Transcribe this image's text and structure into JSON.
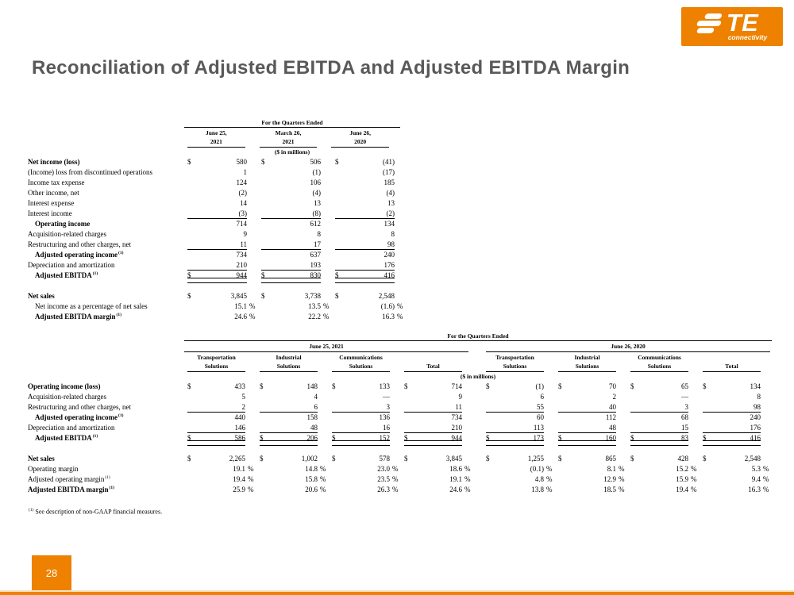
{
  "slide": {
    "title": "Reconciliation of Adjusted EBITDA and Adjusted EBITDA Margin",
    "title_color": "#595959",
    "accent_color": "#EE8100",
    "page_number": "28",
    "footnote": {
      "sup": "(1)",
      "text": "See description of non-GAAP financial measures."
    }
  },
  "logo": {
    "brand": "TE",
    "tagline": "connectivity"
  },
  "quarters_table": {
    "header": "For the Quarters Ended",
    "units": "($ in millions)",
    "columns": [
      {
        "line1": "June 25,",
        "line2": "2021"
      },
      {
        "line1": "March 26,",
        "line2": "2021"
      },
      {
        "line1": "June 26,",
        "line2": "2020"
      }
    ],
    "rows": [
      {
        "label": "Net income (loss)",
        "bold": true,
        "dollar": true,
        "values": [
          "580",
          "506",
          "(41)"
        ]
      },
      {
        "label": "(Income) loss from discontinued operations",
        "values": [
          "1",
          "(1)",
          "(17)"
        ]
      },
      {
        "label": "Income tax expense",
        "values": [
          "124",
          "106",
          "185"
        ]
      },
      {
        "label": "Other income, net",
        "values": [
          "(2)",
          "(4)",
          "(4)"
        ]
      },
      {
        "label": "Interest expense",
        "values": [
          "14",
          "13",
          "13"
        ]
      },
      {
        "label": "Interest income",
        "values": [
          "(3)",
          "(8)",
          "(2)"
        ],
        "line": "single"
      },
      {
        "label": "Operating income",
        "bold": true,
        "indent": true,
        "values": [
          "714",
          "612",
          "134"
        ]
      },
      {
        "label": "Acquisition-related charges",
        "values": [
          "9",
          "8",
          "8"
        ]
      },
      {
        "label": "Restructuring and other charges, net",
        "values": [
          "11",
          "17",
          "98"
        ],
        "line": "single"
      },
      {
        "label": "Adjusted operating income",
        "sup": "(1)",
        "bold": true,
        "indent": true,
        "values": [
          "734",
          "637",
          "240"
        ]
      },
      {
        "label": "Depreciation and amortization",
        "values": [
          "210",
          "193",
          "176"
        ],
        "line": "single"
      },
      {
        "label": "Adjusted EBITDA",
        "sup": "(1)",
        "bold": true,
        "indent": true,
        "dollar": true,
        "values": [
          "944",
          "830",
          "416"
        ],
        "line": "double"
      },
      {
        "spacer": true
      },
      {
        "label": "Net sales",
        "bold": true,
        "dollar": true,
        "values": [
          "3,845",
          "3,738",
          "2,548"
        ]
      },
      {
        "label": "Net income as a percentage of net sales",
        "indent": true,
        "percent": true,
        "values": [
          "15.1",
          "13.5",
          "(1.6)"
        ]
      },
      {
        "label": "Adjusted EBITDA margin",
        "sup": "(1)",
        "bold": true,
        "indent": true,
        "percent": true,
        "values": [
          "24.6",
          "22.2",
          "16.3"
        ]
      }
    ]
  },
  "segments_table": {
    "header": "For the Quarters Ended",
    "units": "($ in millions)",
    "period_groups": [
      {
        "label": "June 25, 2021"
      },
      {
        "label": "June 26, 2020"
      }
    ],
    "columns": [
      {
        "line1": "Transportation",
        "line2": "Solutions"
      },
      {
        "line1": "Industrial",
        "line2": "Solutions"
      },
      {
        "line1": "Communications",
        "line2": "Solutions"
      },
      {
        "line1": "",
        "line2": "Total"
      },
      {
        "line1": "Transportation",
        "line2": "Solutions"
      },
      {
        "line1": "Industrial",
        "line2": "Solutions"
      },
      {
        "line1": "Communications",
        "line2": "Solutions"
      },
      {
        "line1": "",
        "line2": "Total"
      }
    ],
    "rows": [
      {
        "label": "Operating income (loss)",
        "bold": true,
        "dollar": true,
        "values": [
          "433",
          "148",
          "133",
          "714",
          "(1)",
          "70",
          "65",
          "134"
        ]
      },
      {
        "label": "Acquisition-related charges",
        "values": [
          "5",
          "4",
          "—",
          "9",
          "6",
          "2",
          "—",
          "8"
        ]
      },
      {
        "label": "Restructuring and other charges, net",
        "values": [
          "2",
          "6",
          "3",
          "11",
          "55",
          "40",
          "3",
          "98"
        ],
        "line": "single"
      },
      {
        "label": "Adjusted operating income",
        "sup": "(1)",
        "bold": true,
        "indent": true,
        "values": [
          "440",
          "158",
          "136",
          "734",
          "60",
          "112",
          "68",
          "240"
        ]
      },
      {
        "label": "Depreciation and amortization",
        "values": [
          "146",
          "48",
          "16",
          "210",
          "113",
          "48",
          "15",
          "176"
        ],
        "line": "single"
      },
      {
        "label": "Adjusted EBITDA",
        "sup": "(1)",
        "bold": true,
        "indent": true,
        "dollar": true,
        "values": [
          "586",
          "206",
          "152",
          "944",
          "173",
          "160",
          "83",
          "416"
        ],
        "line": "double"
      },
      {
        "spacer": true
      },
      {
        "label": "Net sales",
        "bold": true,
        "dollar": true,
        "values": [
          "2,265",
          "1,002",
          "578",
          "3,845",
          "1,255",
          "865",
          "428",
          "2,548"
        ]
      },
      {
        "label": "Operating margin",
        "percent": true,
        "values": [
          "19.1",
          "14.8",
          "23.0",
          "18.6",
          "(0.1)",
          "8.1",
          "15.2",
          "5.3"
        ]
      },
      {
        "label": "Adjusted operating margin",
        "sup": "(1)",
        "percent": true,
        "values": [
          "19.4",
          "15.8",
          "23.5",
          "19.1",
          "4.8",
          "12.9",
          "15.9",
          "9.4"
        ]
      },
      {
        "label": "Adjusted EBITDA margin",
        "sup": "(1)",
        "bold": true,
        "percent": true,
        "values": [
          "25.9",
          "20.6",
          "26.3",
          "24.6",
          "13.8",
          "18.5",
          "19.4",
          "16.3"
        ]
      }
    ]
  }
}
